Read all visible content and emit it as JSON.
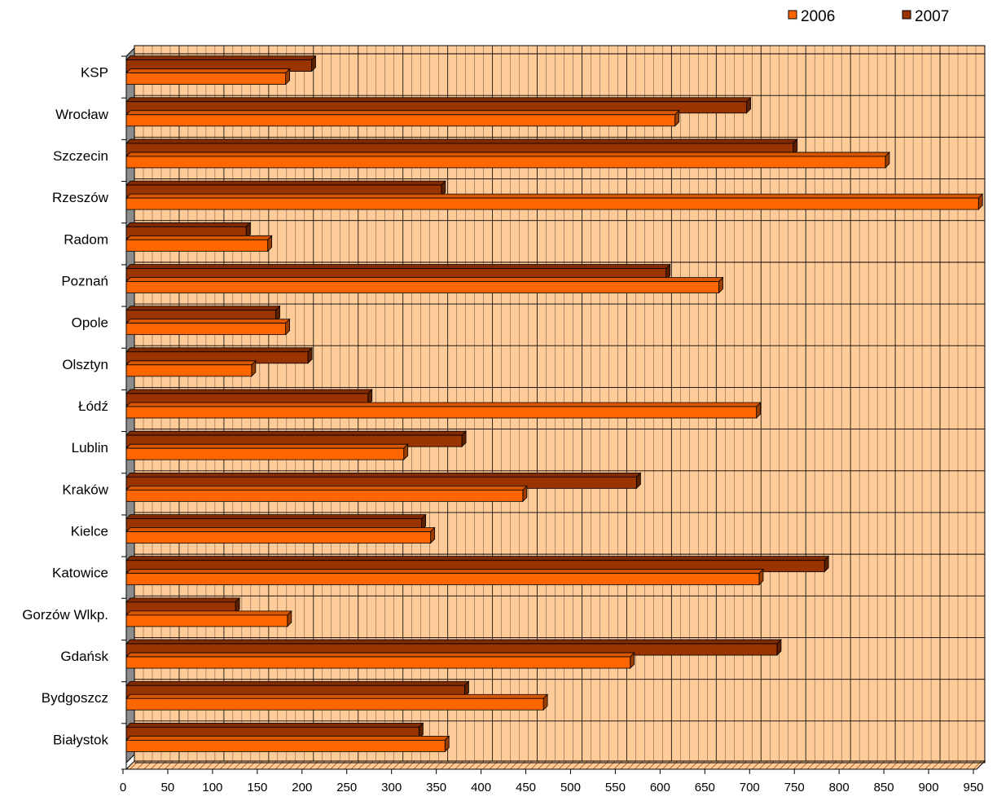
{
  "chart_data": {
    "type": "bar",
    "orientation": "horizontal",
    "categories": [
      "KSP",
      "Wrocław",
      "Szczecin",
      "Rzeszów",
      "Radom",
      "Poznań",
      "Opole",
      "Olsztyn",
      "Łódź",
      "Lublin",
      "Kraków",
      "Kielce",
      "Katowice",
      "Gorzów Wlkp.",
      "Gdańsk",
      "Bydgoszcz",
      "Białystok"
    ],
    "series": [
      {
        "name": "2006",
        "color": "#FF6600",
        "values": [
          178,
          613,
          848,
          952,
          158,
          662,
          178,
          140,
          704,
          310,
          443,
          340,
          707,
          180,
          563,
          466,
          356
        ]
      },
      {
        "name": "2007",
        "color": "#993300",
        "values": [
          207,
          693,
          745,
          352,
          134,
          603,
          167,
          203,
          270,
          375,
          570,
          330,
          780,
          122,
          727,
          378,
          327
        ]
      }
    ],
    "xlim": [
      0,
      950
    ],
    "xticks": [
      "0",
      "50",
      "100",
      "150",
      "200",
      "250",
      "300",
      "350",
      "400",
      "450",
      "500",
      "550",
      "600",
      "650",
      "700",
      "750",
      "800",
      "850",
      "900",
      "950"
    ],
    "grid": true,
    "wall_color": "#FFCC99",
    "legend_position": "top-right",
    "title": "",
    "xlabel": "",
    "ylabel": ""
  }
}
